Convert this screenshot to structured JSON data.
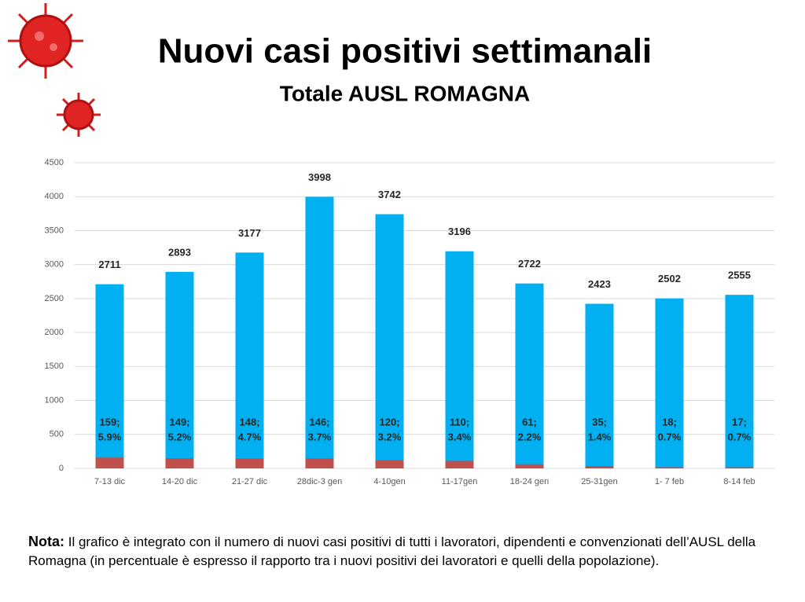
{
  "chart_data": {
    "type": "bar",
    "title": "Nuovi casi positivi settimanali",
    "subtitle": "Totale AUSL ROMAGNA",
    "categories": [
      "7-13 dic",
      "14-20 dic",
      "21-27 dic",
      "28dic-3 gen",
      "4-10gen",
      "11-17gen",
      "18-24 gen",
      "25-31gen",
      "1- 7 feb",
      "8-14 feb"
    ],
    "series": [
      {
        "color": "#00b0f0",
        "values": [
          2711,
          2893,
          3177,
          3998,
          3742,
          3196,
          2722,
          2423,
          2502,
          2555
        ]
      },
      {
        "color": "#c0504d",
        "values": [
          159,
          149,
          148,
          146,
          120,
          110,
          61,
          35,
          18,
          17
        ],
        "value_labels": [
          "159;",
          "149;",
          "148;",
          "146;",
          "120;",
          "110;",
          "61;",
          "35;",
          "18;",
          "17;"
        ],
        "share_labels": [
          "5.9%",
          "5.2%",
          "4.7%",
          "3.7%",
          "3.2%",
          "3.4%",
          "2.2%",
          "1.4%",
          "0.7%",
          "0.7%"
        ]
      }
    ],
    "ylim": [
      0,
      4500
    ],
    "yticks": [
      0,
      500,
      1000,
      1500,
      2000,
      2500,
      3000,
      3500,
      4000,
      4500
    ],
    "grid": true
  },
  "note": {
    "label": "Nota:",
    "text": "Il grafico è integrato con il numero di nuovi casi positivi di tutti i lavoratori, dipendenti e convenzionati dell’AUSL della Romagna (in percentuale è espresso il rapporto tra i nuovi positivi dei lavoratori e quelli della popolazione)."
  }
}
